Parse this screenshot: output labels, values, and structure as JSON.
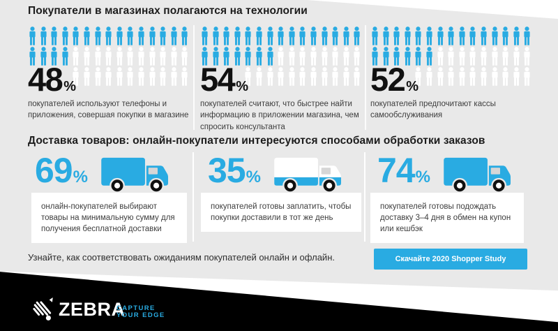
{
  "colors": {
    "accent": "#29ABE2",
    "background": "#E9E9E9",
    "footer_black": "#000000",
    "card_white": "#FFFFFF",
    "heading_text": "#1C1C1C",
    "body_text": "#3D3D3D",
    "button_bg": "#29ABE2",
    "button_text": "#FFFFFF"
  },
  "header": {
    "title": "Покупатели в магазинах полагаются на технологии"
  },
  "tech_section": {
    "stats": [
      {
        "percent": "48",
        "percent_sign": "%",
        "description": "покупателей используют телефоны и приложения, совершая покупки в магазине",
        "pictogram": {
          "icon": "person-icon",
          "rows": [
            {
              "filled": 15,
              "empty": 0,
              "offset": 0
            },
            {
              "filled": 4,
              "empty": 11,
              "offset": 0
            },
            {
              "filled": 0,
              "empty": 11,
              "offset": 4
            }
          ]
        }
      },
      {
        "percent": "54",
        "percent_sign": "%",
        "description": "покупателей считают, что быстрее найти информацию в приложении магазина, чем спросить консультанта",
        "pictogram": {
          "icon": "person-icon",
          "rows": [
            {
              "filled": 15,
              "empty": 0,
              "offset": 0
            },
            {
              "filled": 7,
              "empty": 8,
              "offset": 0
            },
            {
              "filled": 0,
              "empty": 11,
              "offset": 4
            }
          ]
        }
      },
      {
        "percent": "52",
        "percent_sign": "%",
        "description": "покупателей предпочитают кассы самообслуживания",
        "pictogram": {
          "icon": "person-icon",
          "rows": [
            {
              "filled": 15,
              "empty": 0,
              "offset": 0
            },
            {
              "filled": 6,
              "empty": 9,
              "offset": 0
            },
            {
              "filled": 0,
              "empty": 11,
              "offset": 4
            }
          ]
        }
      }
    ]
  },
  "delivery_section": {
    "title": "Доставка товаров: онлайн-покупатели интересуются способами обработки заказов",
    "stats": [
      {
        "percent": "69",
        "percent_sign": "%",
        "icon": "delivery-truck-icon",
        "truck_style": "filled",
        "description": "онлайн-покупателей выбирают товары на минимальную сумму для получения бесплатной доставки"
      },
      {
        "percent": "35",
        "percent_sign": "%",
        "icon": "delivery-truck-icon",
        "truck_style": "outline",
        "description": "покупателей готовы заплатить, чтобы покупки доставили в тот же день"
      },
      {
        "percent": "74",
        "percent_sign": "%",
        "icon": "delivery-truck-icon",
        "truck_style": "filled",
        "description": "покупателей готовы подождать доставку 3–4 дня в обмен на купон или кешбэк"
      }
    ]
  },
  "cta": {
    "text": "Узнайте, как соответствовать ожиданиям покупателей онлайн и офлайн.",
    "button_label": "Скачайте 2020 Shopper Study"
  },
  "footer": {
    "logo_icon": "zebra-head-icon",
    "brand": "ZEBRA",
    "tagline_line1": "CAPTURE",
    "tagline_line2": "YOUR EDGE"
  },
  "chart_data": [
    {
      "type": "bar",
      "title": "Покупатели в магазинах полагаются на технологии",
      "categories": [
        "покупателей используют телефоны и приложения, совершая покупки в магазине",
        "покупателей считают, что быстрее найти информацию в приложении магазина, чем спросить консультанта",
        "покупателей предпочитают кассы самообслуживания"
      ],
      "values": [
        48,
        54,
        52
      ],
      "unit": "%",
      "style": "pictogram-people",
      "ylim": [
        0,
        100
      ]
    },
    {
      "type": "bar",
      "title": "Доставка товаров: онлайн-покупатели интересуются способами обработки заказов",
      "categories": [
        "онлайн-покупателей выбирают товары на минимальную сумму для получения бесплатной доставки",
        "покупателей готовы заплатить, чтобы покупки доставили в тот же день",
        "покупателей готовы подождать доставку 3–4 дня в обмен на купон или кешбэк"
      ],
      "values": [
        69,
        35,
        74
      ],
      "unit": "%",
      "style": "pictogram-truck",
      "ylim": [
        0,
        100
      ]
    }
  ]
}
